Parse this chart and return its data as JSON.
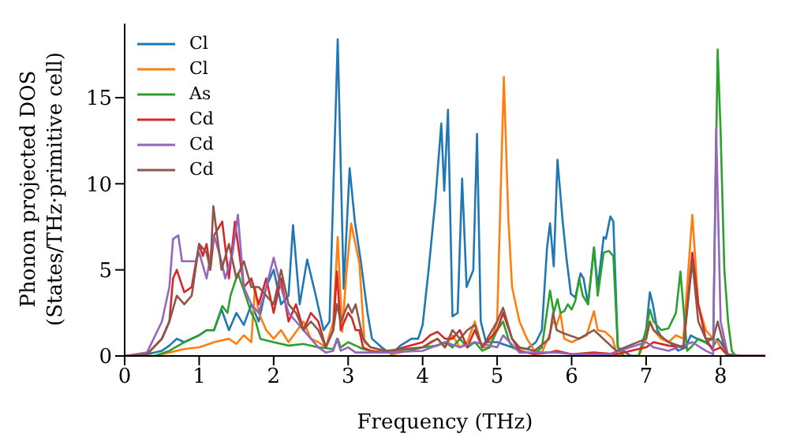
{
  "chart_data": {
    "type": "line",
    "xlabel": "Frequency (THz)",
    "ylabel": "Phonon projected DOS\n(States/THz·primitive cell)",
    "xlim": [
      0,
      8.6
    ],
    "ylim": [
      0,
      19.3
    ],
    "xticks": [
      0,
      1,
      2,
      3,
      4,
      5,
      6,
      7,
      8
    ],
    "yticks": [
      0,
      5,
      10,
      15
    ],
    "grid": false,
    "legend": "top left",
    "marker": "none",
    "line_style": "solid",
    "series": [
      {
        "name": "Cl",
        "color": "#1f77b4",
        "x": [
          0,
          0.3,
          0.5,
          0.6,
          0.7,
          0.8,
          0.9,
          1.0,
          1.1,
          1.2,
          1.3,
          1.4,
          1.5,
          1.6,
          1.7,
          1.8,
          1.9,
          2.0,
          2.1,
          2.2,
          2.26,
          2.35,
          2.45,
          2.56,
          2.67,
          2.75,
          2.86,
          2.94,
          3.02,
          3.09,
          3.17,
          3.26,
          3.32,
          3.45,
          3.58,
          3.7,
          3.85,
          3.94,
          4.0,
          4.08,
          4.17,
          4.25,
          4.29,
          4.34,
          4.4,
          4.47,
          4.53,
          4.59,
          4.68,
          4.73,
          4.78,
          4.85,
          5.0,
          5.2,
          5.4,
          5.52,
          5.6,
          5.67,
          5.71,
          5.76,
          5.81,
          5.88,
          5.93,
          5.99,
          6.05,
          6.12,
          6.16,
          6.22,
          6.3,
          6.35,
          6.43,
          6.46,
          6.52,
          6.56,
          6.62,
          6.8,
          6.9,
          7.0,
          7.05,
          7.09,
          7.15,
          7.22,
          7.32,
          7.43,
          7.53,
          7.6,
          7.68,
          7.79,
          7.89,
          7.96,
          8.0,
          8.1,
          8.3,
          8.6
        ],
        "values": [
          0,
          0.1,
          0.3,
          0.6,
          1.0,
          0.8,
          1.0,
          1.2,
          1.5,
          1.5,
          2.7,
          1.5,
          2.5,
          1.8,
          3.0,
          2.0,
          4.0,
          5.0,
          3.0,
          3.5,
          7.6,
          3.0,
          5.6,
          3.6,
          1.5,
          2.0,
          18.4,
          3.9,
          10.9,
          7.8,
          5.5,
          2.5,
          1.0,
          0.5,
          0.1,
          0.6,
          1.0,
          1.0,
          1.8,
          5.0,
          9.0,
          13.5,
          9.6,
          14.3,
          2.3,
          2.5,
          10.3,
          4.0,
          5.0,
          12.9,
          2.0,
          0.8,
          0.8,
          0.5,
          0.4,
          0.8,
          1.5,
          6.3,
          7.7,
          5.2,
          11.4,
          7.8,
          5.7,
          3.6,
          3.4,
          4.8,
          4.5,
          3.0,
          6.3,
          4.0,
          6.9,
          6.8,
          8.1,
          7.8,
          0.5,
          0,
          0,
          1.5,
          3.7,
          3.0,
          1.5,
          1.0,
          0.8,
          0.3,
          0.5,
          1.2,
          1.0,
          0.8,
          0.5,
          1.0,
          0.8,
          0.1,
          0,
          0
        ]
      },
      {
        "name": "Cl",
        "color": "#ff7f0e",
        "x": [
          0,
          0.4,
          0.6,
          0.8,
          1.0,
          1.2,
          1.4,
          1.5,
          1.6,
          1.7,
          1.75,
          1.8,
          1.9,
          2.0,
          2.1,
          2.2,
          2.3,
          2.4,
          2.5,
          2.6,
          2.7,
          2.8,
          2.86,
          2.92,
          2.98,
          3.04,
          3.15,
          3.22,
          3.3,
          3.5,
          3.6,
          3.8,
          4.0,
          4.1,
          4.2,
          4.3,
          4.4,
          4.5,
          4.6,
          4.7,
          4.8,
          4.9,
          5.0,
          5.09,
          5.15,
          5.2,
          5.3,
          5.4,
          5.5,
          5.6,
          5.7,
          5.75,
          5.8,
          5.85,
          5.9,
          6.0,
          6.2,
          6.3,
          6.35,
          6.45,
          6.55,
          6.6,
          6.7,
          6.9,
          7.0,
          7.05,
          7.1,
          7.2,
          7.3,
          7.4,
          7.5,
          7.62,
          7.7,
          7.8,
          7.9,
          7.96,
          8.0,
          8.1,
          8.3,
          8.6
        ],
        "values": [
          0,
          0,
          0.2,
          0.4,
          0.5,
          0.8,
          1.0,
          0.7,
          1.2,
          0.8,
          4.0,
          2.5,
          1.5,
          1.0,
          1.5,
          0.8,
          1.4,
          2.0,
          1.0,
          0.8,
          0.5,
          2.0,
          6.9,
          1.4,
          5.0,
          7.7,
          5.4,
          0.8,
          0.5,
          0.3,
          0.1,
          0.3,
          0.5,
          0.8,
          1.0,
          0.5,
          1.2,
          0.5,
          0.8,
          2.0,
          0.5,
          0.5,
          2.0,
          16.2,
          8.0,
          4.0,
          2.0,
          1.0,
          0.3,
          0.2,
          1.2,
          2.0,
          1.8,
          2.5,
          1.0,
          0.8,
          1.2,
          2.6,
          1.5,
          1.4,
          1.0,
          0.2,
          0,
          0,
          1.0,
          2.0,
          1.5,
          1.0,
          0.8,
          1.2,
          1.0,
          8.2,
          3.0,
          1.5,
          1.0,
          0.8,
          0.5,
          0,
          0,
          0
        ]
      },
      {
        "name": "As",
        "color": "#2ca02c",
        "x": [
          0,
          0.4,
          0.6,
          0.8,
          1.0,
          1.1,
          1.2,
          1.31,
          1.38,
          1.42,
          1.52,
          1.6,
          1.7,
          1.76,
          1.82,
          1.9,
          2.0,
          2.2,
          2.4,
          2.6,
          2.8,
          2.86,
          2.9,
          3.0,
          3.1,
          3.2,
          3.3,
          3.5,
          3.8,
          4.0,
          4.2,
          4.3,
          4.4,
          4.5,
          4.6,
          4.7,
          4.8,
          4.9,
          5.0,
          5.08,
          5.15,
          5.2,
          5.3,
          5.5,
          5.6,
          5.65,
          5.71,
          5.76,
          5.81,
          5.85,
          5.9,
          5.95,
          6.0,
          6.05,
          6.1,
          6.15,
          6.22,
          6.3,
          6.35,
          6.43,
          6.5,
          6.56,
          6.62,
          6.7,
          6.9,
          7.0,
          7.05,
          7.1,
          7.2,
          7.3,
          7.4,
          7.46,
          7.55,
          7.6,
          7.7,
          7.8,
          7.9,
          7.96,
          8.0,
          8.05,
          8.1,
          8.15,
          8.2,
          8.6
        ],
        "values": [
          0,
          0,
          0.3,
          0.8,
          1.2,
          1.5,
          1.5,
          2.9,
          2.5,
          3.5,
          4.8,
          3.8,
          2.5,
          2.0,
          1.0,
          0.9,
          0.8,
          0.6,
          0.7,
          0.5,
          0.4,
          1.0,
          0.5,
          0.8,
          0.6,
          0.4,
          0.3,
          0.2,
          0.3,
          0.5,
          0.6,
          0.8,
          0.5,
          1.0,
          0.5,
          0.8,
          0.3,
          0.5,
          1.5,
          2.0,
          1.0,
          0.5,
          0.3,
          0.1,
          0.5,
          2.0,
          3.8,
          2.5,
          3.3,
          2.5,
          2.6,
          3.0,
          2.7,
          3.2,
          4.5,
          3.5,
          3.0,
          6.3,
          3.5,
          6.0,
          6.1,
          5.8,
          0.5,
          0,
          0,
          1.5,
          2.7,
          2.0,
          1.5,
          1.6,
          2.5,
          4.9,
          0.3,
          0.5,
          1.0,
          0.8,
          1.0,
          17.8,
          13.0,
          5.0,
          2.0,
          0.3,
          0,
          0
        ]
      },
      {
        "name": "Cd",
        "color": "#d62728",
        "x": [
          0,
          0.3,
          0.5,
          0.6,
          0.65,
          0.7,
          0.8,
          0.9,
          1.0,
          1.05,
          1.1,
          1.15,
          1.2,
          1.31,
          1.4,
          1.48,
          1.6,
          1.7,
          1.8,
          1.9,
          2.0,
          2.1,
          2.2,
          2.3,
          2.4,
          2.5,
          2.6,
          2.7,
          2.8,
          2.85,
          2.9,
          3.0,
          3.05,
          3.1,
          3.15,
          3.2,
          3.3,
          3.5,
          4.0,
          4.1,
          4.2,
          4.3,
          4.4,
          4.5,
          4.6,
          4.7,
          4.8,
          5.0,
          5.08,
          5.2,
          5.3,
          5.5,
          5.7,
          5.8,
          6.0,
          6.3,
          6.6,
          7.0,
          7.1,
          7.3,
          7.5,
          7.62,
          7.7,
          7.8,
          7.9,
          8.0,
          8.1,
          8.6
        ],
        "values": [
          0,
          0.1,
          1.0,
          2.0,
          4.5,
          5.0,
          3.7,
          4.0,
          6.5,
          5.8,
          6.5,
          5.0,
          7.0,
          7.8,
          4.5,
          7.8,
          4.0,
          4.5,
          3.0,
          4.5,
          2.5,
          4.5,
          2.0,
          3.0,
          1.5,
          2.5,
          2.0,
          0.5,
          1.5,
          4.9,
          1.5,
          2.5,
          2.2,
          1.5,
          1.5,
          0.5,
          0.3,
          0.2,
          0.8,
          1.2,
          1.4,
          1.0,
          1.0,
          1.5,
          0.5,
          1.5,
          0.5,
          1.5,
          2.5,
          1.0,
          0.3,
          0.1,
          0.2,
          0.3,
          0.1,
          0.2,
          0.1,
          0.5,
          0.8,
          0.6,
          0.5,
          6.0,
          3.0,
          1.0,
          0.3,
          0.5,
          0,
          0
        ]
      },
      {
        "name": "Cd",
        "color": "#9467bd",
        "x": [
          0,
          0.3,
          0.5,
          0.6,
          0.65,
          0.72,
          0.77,
          0.85,
          0.95,
          1.0,
          1.1,
          1.2,
          1.3,
          1.35,
          1.45,
          1.52,
          1.6,
          1.7,
          1.8,
          1.9,
          2.0,
          2.1,
          2.2,
          2.3,
          2.4,
          2.5,
          2.6,
          2.7,
          2.8,
          2.85,
          2.9,
          3.0,
          3.1,
          3.5,
          4.0,
          4.3,
          4.5,
          4.7,
          5.0,
          5.08,
          5.3,
          5.8,
          6.0,
          6.5,
          7.0,
          7.1,
          7.3,
          7.62,
          7.8,
          7.9,
          7.94,
          8.0,
          8.1,
          8.6
        ],
        "values": [
          0,
          0.2,
          2.0,
          4.0,
          6.8,
          7.0,
          5.5,
          5.5,
          5.5,
          6.0,
          4.5,
          7.0,
          5.5,
          4.5,
          6.0,
          8.2,
          4.0,
          3.0,
          2.5,
          4.0,
          5.7,
          4.0,
          2.5,
          2.0,
          1.5,
          1.0,
          0.5,
          0.2,
          0.3,
          1.0,
          0.3,
          0.5,
          0.2,
          0.2,
          0.3,
          0.8,
          0.5,
          0.8,
          0.5,
          1.2,
          0.2,
          0.2,
          0.1,
          0.1,
          0.8,
          0.5,
          0.3,
          0.8,
          0.3,
          0.1,
          13.2,
          2.0,
          0,
          0
        ]
      },
      {
        "name": "Cd",
        "color": "#8c564b",
        "x": [
          0,
          0.3,
          0.5,
          0.6,
          0.7,
          0.8,
          0.9,
          1.0,
          1.1,
          1.15,
          1.19,
          1.3,
          1.4,
          1.5,
          1.6,
          1.7,
          1.8,
          1.9,
          2.0,
          2.1,
          2.2,
          2.3,
          2.4,
          2.5,
          2.6,
          2.7,
          2.8,
          2.85,
          2.9,
          3.0,
          3.05,
          3.1,
          3.2,
          3.3,
          3.5,
          4.0,
          4.2,
          4.3,
          4.4,
          4.5,
          4.6,
          4.7,
          4.8,
          5.0,
          5.08,
          5.2,
          5.3,
          5.5,
          5.7,
          5.75,
          5.8,
          5.9,
          6.1,
          6.3,
          6.6,
          7.0,
          7.05,
          7.1,
          7.3,
          7.5,
          7.62,
          7.7,
          7.8,
          7.9,
          7.96,
          8.05,
          8.1,
          8.6
        ],
        "values": [
          0,
          0.1,
          1.0,
          2.0,
          3.5,
          3.0,
          3.5,
          6.5,
          6.0,
          5.0,
          8.7,
          5.0,
          6.5,
          4.5,
          5.5,
          4.0,
          4.0,
          3.5,
          3.0,
          5.0,
          3.0,
          2.5,
          1.5,
          2.0,
          1.5,
          0.5,
          1.5,
          3.0,
          2.0,
          3.0,
          2.5,
          3.0,
          1.0,
          0.5,
          0.3,
          0.5,
          1.0,
          0.5,
          1.5,
          1.0,
          1.5,
          1.8,
          0.5,
          2.0,
          2.8,
          1.0,
          0.5,
          0.3,
          1.0,
          2.5,
          1.5,
          1.3,
          1.0,
          1.5,
          0.3,
          1.0,
          2.0,
          1.5,
          0.8,
          0.5,
          5.5,
          2.0,
          1.0,
          1.0,
          2.0,
          0.5,
          0,
          0
        ]
      }
    ]
  }
}
